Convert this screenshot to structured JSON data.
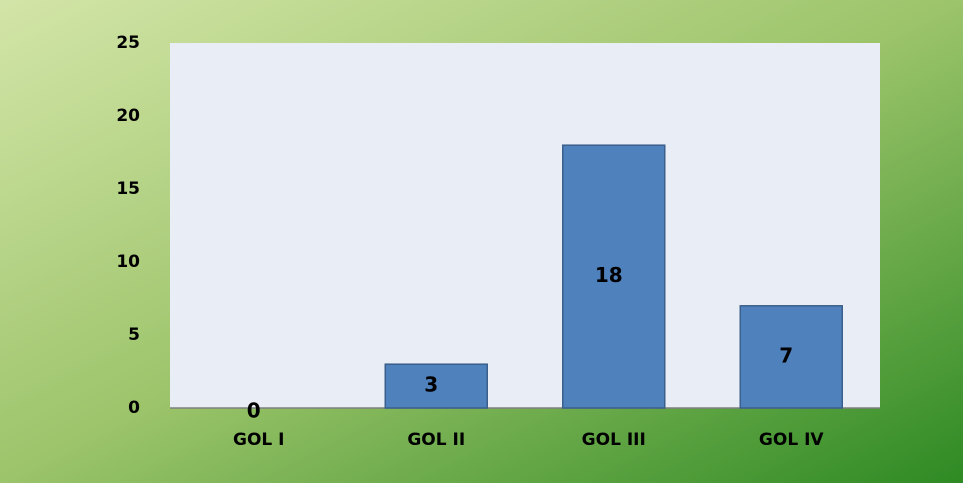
{
  "chart_data": {
    "type": "bar",
    "categories": [
      "GOL I",
      "GOL II",
      "GOL III",
      "GOL IV"
    ],
    "values": [
      0,
      3,
      18,
      7
    ],
    "color": "#4f81bd",
    "ylim": [
      0,
      25
    ],
    "yticks": [
      0,
      5,
      10,
      15,
      20,
      25
    ],
    "grid": false
  }
}
